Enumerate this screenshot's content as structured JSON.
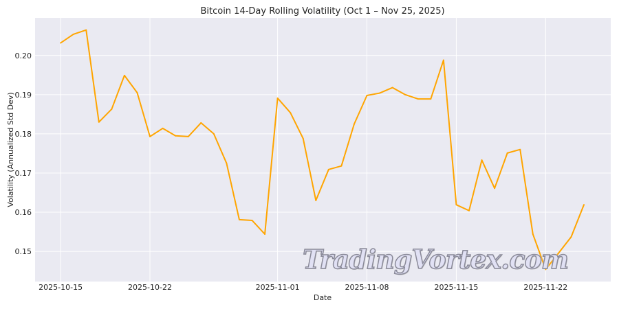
{
  "chart_data": {
    "type": "line",
    "title": "Bitcoin 14-Day Rolling Volatility (Oct 1 – Nov 25, 2025)",
    "xlabel": "Date",
    "ylabel": "Volatility (Annualized Std Dev)",
    "x_start": "2025-10-15",
    "x_tick_labels": [
      "2025-10-15",
      "2025-10-22",
      "2025-11-01",
      "2025-11-08",
      "2025-11-15",
      "2025-11-22"
    ],
    "x_tick_days": [
      0,
      7,
      17,
      24,
      31,
      38
    ],
    "y_ticks": [
      0.15,
      0.16,
      0.17,
      0.18,
      0.19,
      0.2
    ],
    "y_tick_labels": [
      "0.15",
      "0.16",
      "0.17",
      "0.18",
      "0.19",
      "0.20"
    ],
    "xlim_days": [
      -2,
      43.1
    ],
    "ylim": [
      0.1423,
      0.2096
    ],
    "grid": true,
    "series": [
      {
        "name": "Volatility",
        "color": "#ffa500",
        "values": [
          0.2032,
          0.2054,
          0.2065,
          0.183,
          0.1863,
          0.1949,
          0.1905,
          0.1793,
          0.1814,
          0.1795,
          0.1793,
          0.1828,
          0.18,
          0.1725,
          0.1581,
          0.1579,
          0.1544,
          0.1891,
          0.1854,
          0.1788,
          0.163,
          0.1709,
          0.1718,
          0.1825,
          0.1898,
          0.1904,
          0.1918,
          0.19,
          0.1889,
          0.1889,
          0.1988,
          0.1619,
          0.1604,
          0.1733,
          0.1661,
          0.1751,
          0.176,
          0.1544,
          0.1454,
          0.1495,
          0.1537,
          0.1619
        ]
      }
    ]
  },
  "watermark": "TradingVortex.com"
}
